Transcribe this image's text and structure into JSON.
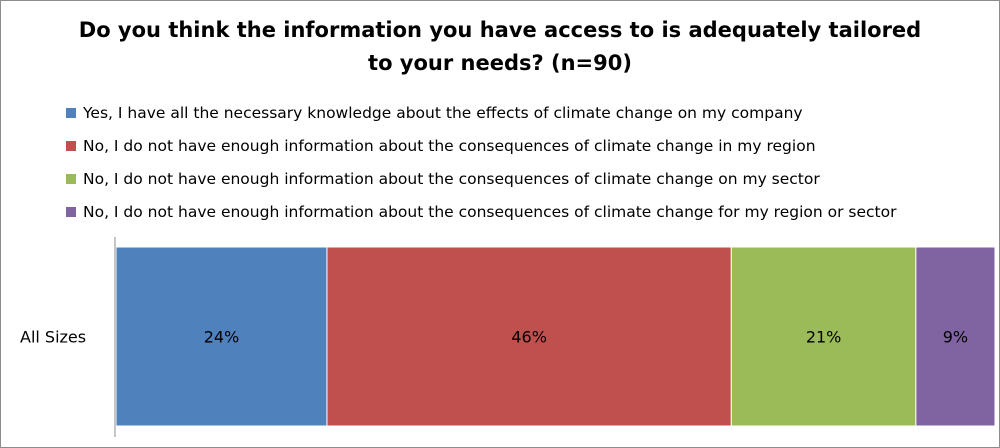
{
  "chart_data": {
    "type": "bar",
    "orientation": "horizontal",
    "stacked": true,
    "title": "Do you think the information you have access to is adequately tailored to your needs? (n=90)",
    "title_lines": [
      "Do you think the information you have access to is adequately tailored",
      "to your needs? (n=90)"
    ],
    "categories": [
      "All Sizes"
    ],
    "series": [
      {
        "name": "Yes, I have all the necessary knowledge about the effects of climate change on my company",
        "values": [
          24
        ],
        "label": "24%",
        "color": "#4f81bd"
      },
      {
        "name": "No, I do not have enough information about the consequences of climate change in my region",
        "values": [
          46
        ],
        "label": "46%",
        "color": "#c0504d"
      },
      {
        "name": "No, I do not have enough information about the consequences of climate change on my sector",
        "values": [
          21
        ],
        "label": "21%",
        "color": "#9bbb59"
      },
      {
        "name": "No, I do not have enough information about the consequences of climate change for my region or sector",
        "values": [
          9
        ],
        "label": "9%",
        "color": "#8064a2"
      }
    ],
    "xlim": [
      0,
      100
    ],
    "legend_position": "top",
    "grid": false
  }
}
